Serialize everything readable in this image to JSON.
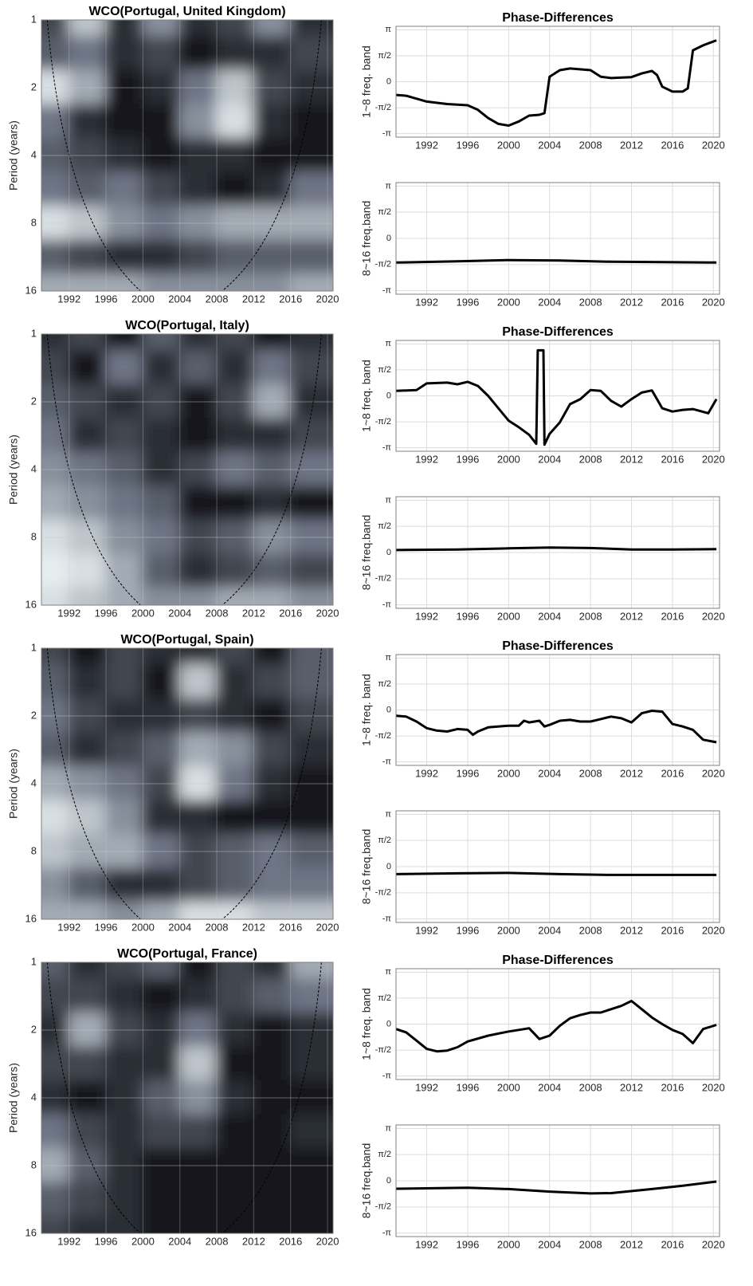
{
  "chart_data": [
    {
      "type": "heatmap",
      "title": "WCO(Portugal, United Kingdom)",
      "ylabel": "Period (years)",
      "x": [
        1990,
        1994,
        1998,
        2002,
        2006,
        2010,
        2014,
        2018
      ],
      "y": [
        1,
        1.41,
        2,
        2.83,
        4,
        5.66,
        8,
        11.31,
        16
      ],
      "log_y": true,
      "z": [
        [
          0.3,
          0.8,
          0.2,
          0.6,
          0.2,
          0.3,
          0.6,
          0.2
        ],
        [
          0.4,
          0.5,
          0.2,
          0.3,
          0.1,
          0.2,
          0.2,
          0.3
        ],
        [
          0.9,
          0.7,
          0.1,
          0.2,
          0.5,
          0.8,
          0.3,
          0.2
        ],
        [
          0.5,
          0.2,
          0.1,
          0.1,
          0.6,
          0.9,
          0.2,
          0.1
        ],
        [
          0.4,
          0.3,
          0.2,
          0.1,
          0.2,
          0.2,
          0.1,
          0.1
        ],
        [
          0.5,
          0.4,
          0.5,
          0.3,
          0.2,
          0.1,
          0.2,
          0.5
        ],
        [
          0.9,
          0.8,
          0.6,
          0.5,
          0.6,
          0.7,
          0.7,
          0.7
        ],
        [
          0.4,
          0.3,
          0.2,
          0.2,
          0.3,
          0.4,
          0.4,
          0.4
        ],
        [
          0.7,
          0.7,
          0.7,
          0.6,
          0.6,
          0.6,
          0.6,
          0.7
        ]
      ],
      "xlim": [
        1989,
        2020.6
      ],
      "ylim": [
        1,
        16
      ],
      "xticks": [
        1992,
        1996,
        2000,
        2004,
        2008,
        2012,
        2016,
        2020
      ],
      "yticks": [
        1,
        2,
        4,
        8,
        16
      ],
      "grid": true
    },
    {
      "type": "line",
      "title": "Phase-Differences",
      "ylabel": "1~8 freq. band",
      "color": "#000000",
      "x": [
        1989,
        1990,
        1992,
        1994,
        1996,
        1997,
        1998,
        1999,
        2000,
        2001,
        2002,
        2003,
        2003.5,
        2004,
        2005,
        2006,
        2008,
        2009,
        2010,
        2012,
        2013,
        2014,
        2014.5,
        2015,
        2016,
        2017,
        2017.5,
        2018,
        2019,
        2020.3
      ],
      "values": [
        -0.8,
        -0.85,
        -1.2,
        -1.35,
        -1.42,
        -1.7,
        -2.2,
        -2.55,
        -2.65,
        -2.4,
        -2.05,
        -2.0,
        -1.9,
        0.3,
        0.7,
        0.8,
        0.7,
        0.3,
        0.22,
        0.28,
        0.5,
        0.65,
        0.4,
        -0.3,
        -0.6,
        -0.6,
        -0.4,
        1.9,
        2.2,
        2.5
      ],
      "xlim": [
        1989,
        2020.6
      ],
      "ylim": [
        -3.35,
        3.35
      ],
      "xticks": [
        1992,
        1996,
        2000,
        2004,
        2008,
        2012,
        2016,
        2020
      ],
      "yticks": [
        {
          "value": 3.1416,
          "label": "π"
        },
        {
          "value": 1.5708,
          "label": "π/2"
        },
        0,
        {
          "value": -1.5708,
          "label": "-π/2"
        },
        {
          "value": -3.1416,
          "label": "-π"
        }
      ],
      "grid": true
    },
    {
      "type": "line",
      "ylabel": "8~16 freq.band",
      "color": "#000000",
      "x": [
        1989,
        1995,
        2000,
        2005,
        2010,
        2015,
        2020.3
      ],
      "values": [
        -1.45,
        -1.38,
        -1.3,
        -1.33,
        -1.4,
        -1.42,
        -1.45
      ],
      "xlim": [
        1989,
        2020.6
      ],
      "ylim": [
        -3.35,
        3.35
      ],
      "xticks": [
        1992,
        1996,
        2000,
        2004,
        2008,
        2012,
        2016,
        2020
      ],
      "yticks": [
        {
          "value": 3.1416,
          "label": "π"
        },
        {
          "value": 1.5708,
          "label": "π/2"
        },
        0,
        {
          "value": -1.5708,
          "label": "-π/2"
        },
        {
          "value": -3.1416,
          "label": "-π"
        }
      ],
      "grid": true
    },
    {
      "type": "heatmap",
      "title": "WCO(Portugal, Italy)",
      "ylabel": "Period (years)",
      "x": [
        1990,
        1994,
        1998,
        2002,
        2006,
        2010,
        2014,
        2018
      ],
      "y": [
        1,
        1.41,
        2,
        2.83,
        4,
        5.66,
        8,
        11.31,
        16
      ],
      "log_y": true,
      "z": [
        [
          0.2,
          0.3,
          0.1,
          0.4,
          0.2,
          0.3,
          0.1,
          0.2
        ],
        [
          0.3,
          0.1,
          0.5,
          0.2,
          0.4,
          0.2,
          0.5,
          0.3
        ],
        [
          0.4,
          0.3,
          0.2,
          0.3,
          0.1,
          0.3,
          0.7,
          0.2
        ],
        [
          0.5,
          0.2,
          0.3,
          0.2,
          0.1,
          0.2,
          0.2,
          0.3
        ],
        [
          0.6,
          0.5,
          0.4,
          0.2,
          0.3,
          0.5,
          0.4,
          0.5
        ],
        [
          0.7,
          0.6,
          0.5,
          0.4,
          0.1,
          0.1,
          0.2,
          0.1
        ],
        [
          0.9,
          0.8,
          0.6,
          0.5,
          0.3,
          0.4,
          0.6,
          0.5
        ],
        [
          0.95,
          0.9,
          0.7,
          0.4,
          0.2,
          0.3,
          0.4,
          0.3
        ],
        [
          0.9,
          0.8,
          0.7,
          0.6,
          0.6,
          0.7,
          0.7,
          0.6
        ]
      ],
      "xlim": [
        1989,
        2020.6
      ],
      "ylim": [
        1,
        16
      ],
      "xticks": [
        1992,
        1996,
        2000,
        2004,
        2008,
        2012,
        2016,
        2020
      ],
      "yticks": [
        1,
        2,
        4,
        8,
        16
      ],
      "grid": true
    },
    {
      "type": "line",
      "title": "Phase-Differences",
      "ylabel": "1~8 freq. band",
      "color": "#000000",
      "x": [
        1989,
        1991,
        1992,
        1994,
        1995,
        1996,
        1997,
        1998,
        2000,
        2001,
        2002,
        2002.7,
        2002.85,
        2003.4,
        2003.5,
        2004,
        2005,
        2006,
        2007,
        2008,
        2009,
        2010,
        2011,
        2012,
        2013,
        2014,
        2015,
        2016,
        2017,
        2018,
        2019.5,
        2020.3
      ],
      "values": [
        0.3,
        0.35,
        0.75,
        0.8,
        0.7,
        0.85,
        0.6,
        0.0,
        -1.5,
        -1.9,
        -2.35,
        -2.9,
        2.75,
        2.75,
        -2.95,
        -2.3,
        -1.6,
        -0.5,
        -0.2,
        0.35,
        0.3,
        -0.3,
        -0.65,
        -0.2,
        0.2,
        0.33,
        -0.75,
        -0.95,
        -0.85,
        -0.8,
        -1.05,
        -0.2
      ],
      "xlim": [
        1989,
        2020.6
      ],
      "ylim": [
        -3.35,
        3.35
      ],
      "xticks": [
        1992,
        1996,
        2000,
        2004,
        2008,
        2012,
        2016,
        2020
      ],
      "yticks": [
        {
          "value": 3.1416,
          "label": "π"
        },
        {
          "value": 1.5708,
          "label": "π/2"
        },
        0,
        {
          "value": -1.5708,
          "label": "-π/2"
        },
        {
          "value": -3.1416,
          "label": "-π"
        }
      ],
      "grid": true
    },
    {
      "type": "line",
      "ylabel": "8~16 freq.band",
      "color": "#000000",
      "x": [
        1989,
        1995,
        2000,
        2004,
        2008,
        2012,
        2016,
        2020.3
      ],
      "values": [
        0.15,
        0.18,
        0.25,
        0.3,
        0.27,
        0.18,
        0.18,
        0.2
      ],
      "xlim": [
        1989,
        2020.6
      ],
      "ylim": [
        -3.35,
        3.35
      ],
      "xticks": [
        1992,
        1996,
        2000,
        2004,
        2008,
        2012,
        2016,
        2020
      ],
      "yticks": [
        {
          "value": 3.1416,
          "label": "π"
        },
        {
          "value": 1.5708,
          "label": "π/2"
        },
        0,
        {
          "value": -1.5708,
          "label": "-π/2"
        },
        {
          "value": -3.1416,
          "label": "-π"
        }
      ],
      "grid": true
    },
    {
      "type": "heatmap",
      "title": "WCO(Portugal, Spain)",
      "ylabel": "Period (years)",
      "x": [
        1990,
        1994,
        1998,
        2002,
        2006,
        2010,
        2014,
        2018
      ],
      "y": [
        1,
        1.41,
        2,
        2.83,
        4,
        5.66,
        8,
        11.31,
        16
      ],
      "log_y": true,
      "z": [
        [
          0.3,
          0.1,
          0.3,
          0.2,
          0.2,
          0.3,
          0.1,
          0.4
        ],
        [
          0.4,
          0.2,
          0.3,
          0.1,
          0.8,
          0.2,
          0.3,
          0.4
        ],
        [
          0.5,
          0.3,
          0.2,
          0.2,
          0.3,
          0.2,
          0.1,
          0.3
        ],
        [
          0.4,
          0.2,
          0.3,
          0.4,
          0.7,
          0.6,
          0.3,
          0.2
        ],
        [
          0.7,
          0.6,
          0.5,
          0.3,
          0.9,
          0.5,
          0.2,
          0.1
        ],
        [
          0.9,
          0.8,
          0.6,
          0.2,
          0.2,
          0.1,
          0.1,
          0.1
        ],
        [
          0.8,
          0.7,
          0.7,
          0.5,
          0.3,
          0.4,
          0.5,
          0.4
        ],
        [
          0.6,
          0.4,
          0.2,
          0.2,
          0.3,
          0.4,
          0.5,
          0.5
        ],
        [
          0.7,
          0.7,
          0.6,
          0.7,
          0.9,
          0.9,
          0.8,
          0.8
        ]
      ],
      "xlim": [
        1989,
        2020.6
      ],
      "ylim": [
        1,
        16
      ],
      "xticks": [
        1992,
        1996,
        2000,
        2004,
        2008,
        2012,
        2016,
        2020
      ],
      "yticks": [
        1,
        2,
        4,
        8,
        16
      ],
      "grid": true
    },
    {
      "type": "line",
      "title": "Phase-Differences",
      "ylabel": "1~8 freq. band",
      "color": "#000000",
      "x": [
        1989,
        1990,
        1991,
        1992,
        1993,
        1994,
        1995,
        1996,
        1996.5,
        1997,
        1998,
        2000,
        2001,
        2001.5,
        2002,
        2003,
        2003.5,
        2004,
        2005,
        2006,
        2007,
        2008,
        2009,
        2010,
        2011,
        2012,
        2013,
        2014,
        2015,
        2016,
        2017,
        2018,
        2019,
        2020.3
      ],
      "values": [
        -0.35,
        -0.4,
        -0.7,
        -1.1,
        -1.25,
        -1.3,
        -1.15,
        -1.2,
        -1.5,
        -1.3,
        -1.05,
        -0.95,
        -0.95,
        -0.65,
        -0.75,
        -0.65,
        -1.0,
        -0.9,
        -0.65,
        -0.6,
        -0.7,
        -0.7,
        -0.55,
        -0.4,
        -0.5,
        -0.75,
        -0.2,
        -0.05,
        -0.1,
        -0.85,
        -1.0,
        -1.2,
        -1.8,
        -1.95
      ],
      "xlim": [
        1989,
        2020.6
      ],
      "ylim": [
        -3.35,
        3.35
      ],
      "xticks": [
        1992,
        1996,
        2000,
        2004,
        2008,
        2012,
        2016,
        2020
      ],
      "yticks": [
        {
          "value": 3.1416,
          "label": "π"
        },
        {
          "value": 1.5708,
          "label": "π/2"
        },
        0,
        {
          "value": -1.5708,
          "label": "-π/2"
        },
        {
          "value": -3.1416,
          "label": "-π"
        }
      ],
      "grid": true
    },
    {
      "type": "line",
      "ylabel": "8~16 freq.band",
      "color": "#000000",
      "x": [
        1989,
        1995,
        2000,
        2005,
        2010,
        2015,
        2020.3
      ],
      "values": [
        -0.45,
        -0.4,
        -0.38,
        -0.45,
        -0.5,
        -0.5,
        -0.5
      ],
      "xlim": [
        1989,
        2020.6
      ],
      "ylim": [
        -3.35,
        3.35
      ],
      "xticks": [
        1992,
        1996,
        2000,
        2004,
        2008,
        2012,
        2016,
        2020
      ],
      "yticks": [
        {
          "value": 3.1416,
          "label": "π"
        },
        {
          "value": 1.5708,
          "label": "π/2"
        },
        0,
        {
          "value": -1.5708,
          "label": "-π/2"
        },
        {
          "value": -3.1416,
          "label": "-π"
        }
      ],
      "grid": true
    },
    {
      "type": "heatmap",
      "title": "WCO(Portugal, France)",
      "ylabel": "Period (years)",
      "x": [
        1990,
        1994,
        1998,
        2002,
        2006,
        2010,
        2014,
        2018
      ],
      "y": [
        1,
        1.41,
        2,
        2.83,
        4,
        5.66,
        8,
        11.31,
        16
      ],
      "log_y": true,
      "z": [
        [
          0.4,
          0.2,
          0.3,
          0.4,
          0.1,
          0.3,
          0.2,
          0.7
        ],
        [
          0.3,
          0.3,
          0.2,
          0.1,
          0.2,
          0.3,
          0.4,
          0.5
        ],
        [
          0.2,
          0.7,
          0.3,
          0.2,
          0.5,
          0.2,
          0.1,
          0.2
        ],
        [
          0.3,
          0.3,
          0.2,
          0.2,
          0.8,
          0.1,
          0.1,
          0.2
        ],
        [
          0.2,
          0.1,
          0.2,
          0.4,
          0.6,
          0.2,
          0.1,
          0.1
        ],
        [
          0.5,
          0.3,
          0.2,
          0.3,
          0.3,
          0.1,
          0.1,
          0.2
        ],
        [
          0.7,
          0.4,
          0.2,
          0.1,
          0.1,
          0.1,
          0.1,
          0.1
        ],
        [
          0.4,
          0.3,
          0.2,
          0.1,
          0.1,
          0.1,
          0.1,
          0.1
        ],
        [
          0.3,
          0.2,
          0.2,
          0.1,
          0.1,
          0.1,
          0.1,
          0.1
        ]
      ],
      "xlim": [
        1989,
        2020.6
      ],
      "ylim": [
        1,
        16
      ],
      "xticks": [
        1992,
        1996,
        2000,
        2004,
        2008,
        2012,
        2016,
        2020
      ],
      "yticks": [
        1,
        2,
        4,
        8,
        16
      ],
      "grid": true
    },
    {
      "type": "line",
      "title": "Phase-Differences",
      "ylabel": "1~8 freq. band",
      "color": "#000000",
      "x": [
        1989,
        1990,
        1991,
        1992,
        1993,
        1994,
        1995,
        1996,
        1998,
        2000,
        2001,
        2002,
        2003,
        2004,
        2005,
        2006,
        2007,
        2008,
        2009,
        2010,
        2011,
        2012,
        2013,
        2014,
        2015,
        2016,
        2017,
        2018,
        2019,
        2020.3
      ],
      "values": [
        -0.3,
        -0.5,
        -1.0,
        -1.5,
        -1.65,
        -1.6,
        -1.4,
        -1.05,
        -0.7,
        -0.45,
        -0.35,
        -0.25,
        -0.9,
        -0.7,
        -0.1,
        0.35,
        0.55,
        0.7,
        0.7,
        0.9,
        1.1,
        1.4,
        0.9,
        0.4,
        0.0,
        -0.35,
        -0.6,
        -1.15,
        -0.3,
        -0.05
      ],
      "xlim": [
        1989,
        2020.6
      ],
      "ylim": [
        -3.35,
        3.35
      ],
      "xticks": [
        1992,
        1996,
        2000,
        2004,
        2008,
        2012,
        2016,
        2020
      ],
      "yticks": [
        {
          "value": 3.1416,
          "label": "π"
        },
        {
          "value": 1.5708,
          "label": "π/2"
        },
        0,
        {
          "value": -1.5708,
          "label": "-π/2"
        },
        {
          "value": -3.1416,
          "label": "-π"
        }
      ],
      "grid": true
    },
    {
      "type": "line",
      "ylabel": "8~16 freq.band",
      "color": "#000000",
      "x": [
        1989,
        1996,
        2000,
        2004,
        2008,
        2010,
        2014,
        2017,
        2020.3
      ],
      "values": [
        -0.48,
        -0.42,
        -0.5,
        -0.65,
        -0.76,
        -0.74,
        -0.5,
        -0.3,
        -0.05
      ],
      "xlim": [
        1989,
        2020.6
      ],
      "ylim": [
        -3.35,
        3.35
      ],
      "xticks": [
        1992,
        1996,
        2000,
        2004,
        2008,
        2012,
        2016,
        2020
      ],
      "yticks": [
        {
          "value": 3.1416,
          "label": "π"
        },
        {
          "value": 1.5708,
          "label": "π/2"
        },
        0,
        {
          "value": -1.5708,
          "label": "-π/2"
        },
        {
          "value": -3.1416,
          "label": "-π"
        }
      ],
      "grid": true
    }
  ]
}
